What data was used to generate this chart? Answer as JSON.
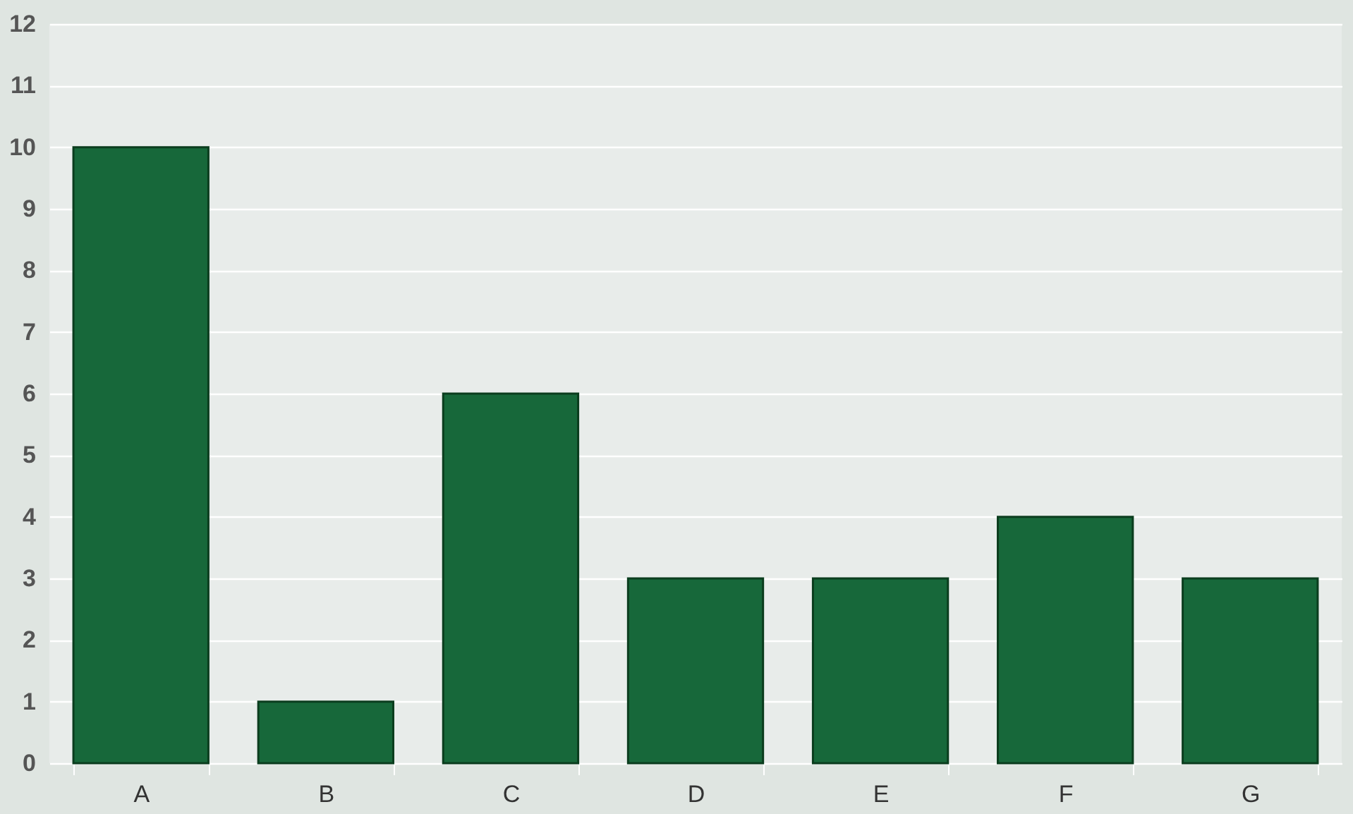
{
  "chart_data": {
    "type": "bar",
    "categories": [
      "A",
      "B",
      "C",
      "D",
      "E",
      "F",
      "G"
    ],
    "values": [
      10,
      1,
      6,
      3,
      3,
      4,
      3
    ],
    "color": "#17683a",
    "ylim": [
      0,
      12
    ],
    "yticks": [
      0,
      1,
      2,
      3,
      4,
      5,
      6,
      7,
      8,
      9,
      10,
      11,
      12
    ],
    "grid": "y"
  }
}
